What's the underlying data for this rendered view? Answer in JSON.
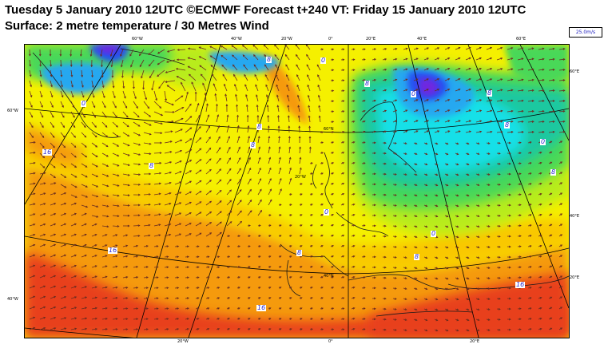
{
  "header": {
    "title_line1": "Tuesday 5 January 2010 12UTC ©ECMWF Forecast t+240 VT: Friday 15 January 2010 12UTC",
    "title_line2": "Surface: 2 metre temperature / 30 Metres Wind"
  },
  "legend": {
    "wind_scale": "25.0m/s"
  },
  "colors": {
    "red": "#e8401a",
    "orange": "#f59a10",
    "yellow_orange": "#f9c800",
    "yellow": "#f5f000",
    "yellow_green": "#b8ec1a",
    "green": "#48d858",
    "teal": "#1ac8a0",
    "cyan": "#18e0e8",
    "light_blue": "#28a8f0",
    "blue": "#2850f0",
    "violet": "#7028e0",
    "arrow": "#6b2d20"
  },
  "top_axis": [
    "60°W",
    "40°W",
    "20°W",
    "0°",
    "20°E",
    "40°E",
    "60°E"
  ],
  "bottom_axis": [
    "20°W",
    "0°",
    "20°E"
  ],
  "left_axis": [
    "60°W",
    "40°W"
  ],
  "right_axis": [
    "60°E",
    "40°E",
    "20°E"
  ],
  "interior_labels": [
    "60°N",
    "20°W",
    "40°N"
  ],
  "isotherm_labels": [
    "8",
    "0",
    "0",
    "8",
    "0",
    "8",
    "8",
    "16",
    "8",
    "8",
    "8",
    "0",
    "8",
    "0",
    "8",
    "8",
    "0",
    "0",
    "16",
    "16",
    "16",
    "8",
    "0",
    "8"
  ]
}
